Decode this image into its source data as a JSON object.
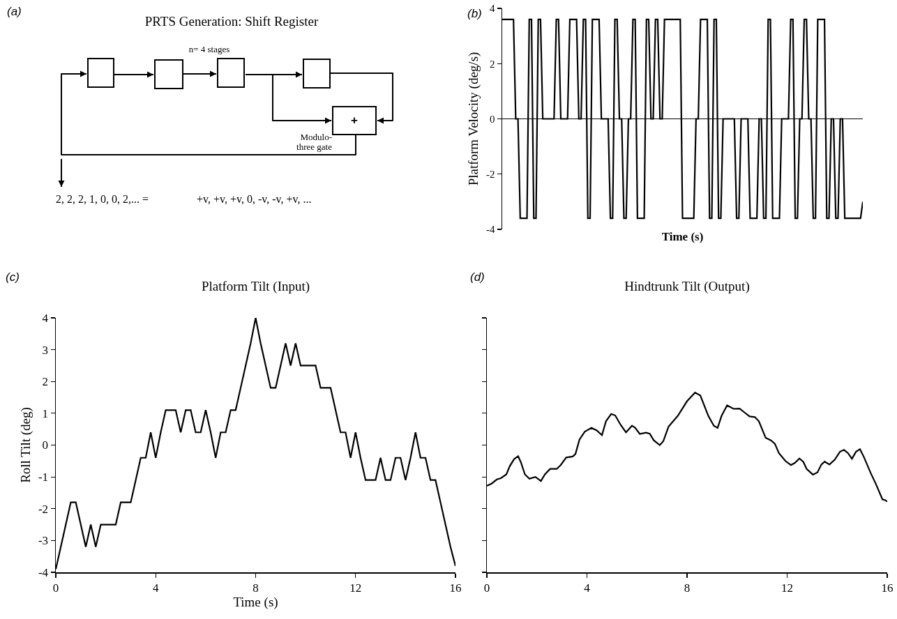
{
  "chart_data": [
    {
      "type": "other",
      "title": "PRTS Generation: Shift Register",
      "annotations": [
        "(a)",
        "n= 4 stages",
        "+",
        "Modulo-three gate",
        "2, 2, 2, 1, 0, 0, 2,... =",
        "+v, +v, +v, 0, -v, -v, +v, ..."
      ]
    },
    {
      "type": "line",
      "ylabel": "Platform Velocity (deg/s)",
      "xlabel": "Time (s)",
      "annotations": [
        "(b)"
      ],
      "categories": [
        null,
        null,
        null,
        null,
        null,
        null,
        null,
        null,
        null,
        null,
        null,
        null,
        null,
        null,
        null,
        null,
        null,
        null,
        null,
        null,
        null,
        null,
        null,
        null,
        null,
        null,
        null,
        null,
        null,
        null,
        null,
        null,
        null,
        null,
        null,
        null,
        null,
        null,
        null,
        null,
        null,
        null,
        null,
        null,
        null,
        null,
        null,
        null,
        null,
        null,
        null,
        null,
        null,
        null,
        null,
        null,
        null,
        null,
        null,
        null,
        null,
        null,
        null,
        null,
        null,
        null,
        null,
        null,
        null,
        null,
        null,
        null,
        null,
        null,
        null,
        null,
        null,
        null,
        null,
        null,
        null,
        null,
        null,
        null,
        null,
        null,
        null,
        null,
        null,
        null,
        null,
        null,
        null,
        null,
        null,
        null,
        null,
        null,
        null,
        null,
        null,
        null,
        null,
        null,
        null,
        null,
        null,
        null,
        null,
        null,
        null,
        null,
        null,
        null,
        null,
        null,
        null,
        null,
        null,
        null,
        null,
        null,
        null,
        null,
        null,
        null,
        null,
        null,
        null,
        null,
        null,
        null,
        null,
        null,
        null,
        null,
        null,
        null,
        null,
        null,
        null,
        null,
        null,
        null,
        null,
        null,
        null,
        null,
        null,
        null,
        null,
        null,
        null,
        null,
        null,
        null,
        null,
        null,
        null,
        null,
        null
      ],
      "series": [
        {
          "color": "#000000",
          "values": [
            3.6,
            3.6,
            3.6,
            3.6,
            3.6,
            3.6,
            0,
            0,
            -3.6,
            -3.6,
            -3.6,
            -3.6,
            3.6,
            3.6,
            -3.6,
            -3.6,
            3.6,
            3.6,
            0,
            0,
            0,
            0,
            0,
            0,
            3.6,
            3.6,
            0,
            0,
            0,
            0,
            3.6,
            3.6,
            3.6,
            3.6,
            0,
            0,
            3.6,
            3.6,
            -3.6,
            -3.6,
            3.6,
            3.6,
            3.6,
            3.6,
            0,
            0,
            0,
            0,
            -3.6,
            -3.6,
            3.6,
            3.6,
            0,
            0,
            -3.6,
            -3.6,
            0,
            0,
            3.6,
            3.6,
            -3.6,
            -3.6,
            -3.6,
            -3.6,
            3.6,
            3.6,
            0,
            0,
            3.6,
            3.6,
            0,
            0,
            3.6,
            3.6,
            3.6,
            3.6,
            3.6,
            3.6,
            3.6,
            3.6,
            -3.6,
            -3.6,
            -3.6,
            -3.6,
            -3.6,
            -3.6,
            0,
            0,
            3.6,
            3.6,
            3.6,
            3.6,
            -3.6,
            -3.6,
            3.6,
            3.6,
            -3.6,
            -3.6,
            0,
            0,
            0,
            0,
            0,
            0,
            -3.6,
            -3.6,
            0,
            0,
            0,
            0,
            -3.6,
            -3.6,
            -3.6,
            -3.6,
            0,
            0,
            -3.6,
            -3.6,
            3.6,
            3.6,
            -3.6,
            -3.6,
            -3.6,
            -3.6,
            0,
            0,
            0,
            0,
            3.6,
            3.6,
            -3.6,
            -3.6,
            0,
            0,
            3.6,
            3.6,
            0,
            0,
            -3.6,
            -3.6,
            3.6,
            3.6,
            3.6,
            3.6,
            -3.6,
            -3.6,
            0,
            0,
            -3.6,
            -3.6,
            0,
            0,
            -3.6,
            -3.6,
            -3.6,
            -3.6,
            -3.6,
            -3.6,
            -3.6,
            -3.6,
            -3.0
          ]
        }
      ],
      "ylim": [
        -4,
        4
      ],
      "yticks": [
        -4,
        -2,
        0,
        2,
        4
      ],
      "tick_labels": "y",
      "ref_lines": [
        {
          "axis": "y",
          "value": 0,
          "color": "#000000"
        }
      ]
    },
    {
      "type": "line",
      "title": "Platform Tilt (Input)",
      "ylabel": "Roll Tilt (deg)",
      "xlabel": "Time (s)",
      "annotations": [
        "(c)"
      ],
      "series": [
        {
          "color": "#000000",
          "x": [
            0,
            0.2,
            0.4,
            0.6,
            0.8,
            1,
            1.2,
            1.4,
            1.6,
            1.8,
            2,
            2.2,
            2.4,
            2.6,
            2.8,
            3,
            3.2,
            3.4,
            3.6,
            3.8,
            4,
            4.2,
            4.4,
            4.6,
            4.8,
            5,
            5.2,
            5.4,
            5.6,
            5.8,
            6,
            6.2,
            6.4,
            6.6,
            6.8,
            7,
            7.2,
            7.4,
            7.6,
            7.8,
            8,
            8.2,
            8.4,
            8.6,
            8.8,
            9,
            9.2,
            9.4,
            9.6,
            9.8,
            10,
            10.2,
            10.4,
            10.6,
            10.8,
            11,
            11.2,
            11.4,
            11.6,
            11.8,
            12,
            12.2,
            12.4,
            12.6,
            12.8,
            13,
            13.2,
            13.4,
            13.6,
            13.8,
            14,
            14.2,
            14.4,
            14.6,
            14.8,
            15,
            15.2,
            15.4,
            15.6,
            15.8,
            16
          ],
          "values": [
            -3.9,
            -3.2,
            -2.5,
            -1.8,
            -1.8,
            -2.5,
            -3.2,
            -2.5,
            -3.2,
            -2.5,
            -2.5,
            -2.5,
            -2.5,
            -1.8,
            -1.8,
            -1.8,
            -1.1,
            -0.4,
            -0.4,
            0.4,
            -0.4,
            0.4,
            1.1,
            1.1,
            1.1,
            0.4,
            1.1,
            1.1,
            0.4,
            0.4,
            1.1,
            0.4,
            -0.4,
            0.4,
            0.4,
            1.1,
            1.1,
            1.8,
            2.5,
            3.2,
            4.0,
            3.2,
            2.5,
            1.8,
            1.8,
            2.5,
            3.2,
            2.5,
            3.2,
            2.5,
            2.5,
            2.5,
            2.5,
            1.8,
            1.8,
            1.8,
            1.1,
            0.4,
            0.4,
            -0.4,
            0.4,
            -0.4,
            -1.1,
            -1.1,
            -1.1,
            -0.4,
            -1.1,
            -1.1,
            -0.4,
            -0.4,
            -1.1,
            -0.4,
            0.4,
            -0.4,
            -0.4,
            -1.1,
            -1.1,
            -1.8,
            -2.5,
            -3.2,
            -3.8
          ]
        }
      ],
      "xlim": [
        0,
        16
      ],
      "xticks": [
        0,
        4,
        8,
        12,
        16
      ],
      "ylim": [
        -4,
        4
      ],
      "yticks": [
        -4,
        -3,
        -2,
        -1,
        0,
        1,
        2,
        3,
        4
      ]
    },
    {
      "type": "line",
      "title": "Hindtrunk Tilt (Output)",
      "annotations": [
        "(d)"
      ],
      "series": [
        {
          "color": "#000000",
          "x": [
            0,
            0.19,
            0.4,
            0.56,
            0.78,
            0.91,
            1.09,
            1.25,
            1.36,
            1.52,
            1.7,
            1.94,
            2.16,
            2.32,
            2.53,
            2.79,
            2.95,
            3.17,
            3.43,
            3.54,
            3.7,
            3.91,
            4.18,
            4.39,
            4.6,
            4.76,
            4.97,
            5.13,
            5.35,
            5.56,
            5.8,
            5.93,
            6.11,
            6.36,
            6.51,
            6.67,
            6.91,
            7.05,
            7.26,
            7.63,
            8,
            8.32,
            8.53,
            8.85,
            9.07,
            9.22,
            9.38,
            9.6,
            9.86,
            10.1,
            10.29,
            10.5,
            10.71,
            10.87,
            11.14,
            11.35,
            11.51,
            11.67,
            11.93,
            12.15,
            12.31,
            12.49,
            12.65,
            12.78,
            13.03,
            13.21,
            13.37,
            13.5,
            13.69,
            13.9,
            14.11,
            14.27,
            14.43,
            14.59,
            14.75,
            14.91,
            15.07,
            15.34,
            15.55,
            15.81,
            15.92,
            16
          ],
          "values": [
            -1.28,
            -1.21,
            -1.08,
            -1.04,
            -0.92,
            -0.67,
            -0.44,
            -0.35,
            -0.54,
            -0.92,
            -1.06,
            -1.0,
            -1.13,
            -0.92,
            -0.75,
            -0.75,
            -0.63,
            -0.39,
            -0.36,
            -0.28,
            0.17,
            0.42,
            0.54,
            0.46,
            0.31,
            0.75,
            0.98,
            0.93,
            0.63,
            0.4,
            0.61,
            0.54,
            0.35,
            0.39,
            0.36,
            0.15,
            0.0,
            0.12,
            0.58,
            0.92,
            1.38,
            1.65,
            1.56,
            0.92,
            0.61,
            0.54,
            0.92,
            1.25,
            1.14,
            1.15,
            1.03,
            0.9,
            0.88,
            0.75,
            0.23,
            0.15,
            0.04,
            -0.25,
            -0.5,
            -0.63,
            -0.56,
            -0.42,
            -0.53,
            -0.75,
            -0.93,
            -0.86,
            -0.61,
            -0.52,
            -0.61,
            -0.46,
            -0.21,
            -0.15,
            -0.25,
            -0.43,
            -0.21,
            -0.13,
            -0.38,
            -0.88,
            -1.23,
            -1.71,
            -1.73,
            -1.78
          ]
        }
      ],
      "xlim": [
        0,
        16
      ],
      "xticks": [
        0,
        4,
        8,
        12,
        16
      ],
      "ylim": [
        -4,
        4
      ],
      "yticks": [
        {
          "value": -4,
          "label": null
        },
        {
          "value": -3,
          "label": null
        },
        {
          "value": -2,
          "label": null
        },
        {
          "value": -1,
          "label": null
        },
        {
          "value": 0,
          "label": null
        },
        {
          "value": 1,
          "label": null
        },
        {
          "value": 2,
          "label": null
        },
        {
          "value": 3,
          "label": null
        },
        {
          "value": 4,
          "label": null
        }
      ],
      "tick_labels": "x"
    }
  ]
}
